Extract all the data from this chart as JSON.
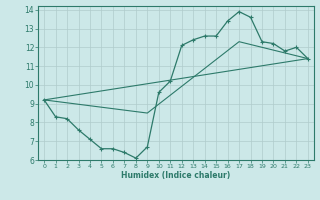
{
  "xlabel": "Humidex (Indice chaleur)",
  "bg_color": "#cce8e8",
  "grid_color": "#b0cccc",
  "line_color": "#2d7a6a",
  "xlim": [
    -0.5,
    23.5
  ],
  "ylim": [
    6,
    14.2
  ],
  "yticks": [
    6,
    7,
    8,
    9,
    10,
    11,
    12,
    13,
    14
  ],
  "xticks": [
    0,
    1,
    2,
    3,
    4,
    5,
    6,
    7,
    8,
    9,
    10,
    11,
    12,
    13,
    14,
    15,
    16,
    17,
    18,
    19,
    20,
    21,
    22,
    23
  ],
  "series1": {
    "x": [
      0,
      1,
      2,
      3,
      4,
      5,
      6,
      7,
      8,
      9,
      10,
      11,
      12,
      13,
      14,
      15,
      16,
      17,
      18,
      19,
      20,
      21,
      22,
      23
    ],
    "y": [
      9.2,
      8.3,
      8.2,
      7.6,
      7.1,
      6.6,
      6.6,
      6.4,
      6.1,
      6.7,
      9.6,
      10.2,
      12.1,
      12.4,
      12.6,
      12.6,
      13.4,
      13.9,
      13.6,
      12.3,
      12.2,
      11.8,
      12.0,
      11.4
    ]
  },
  "series2": {
    "x": [
      0,
      23
    ],
    "y": [
      9.2,
      11.4
    ]
  },
  "series3": {
    "x": [
      0,
      9,
      17,
      23
    ],
    "y": [
      9.2,
      8.5,
      12.3,
      11.4
    ]
  }
}
